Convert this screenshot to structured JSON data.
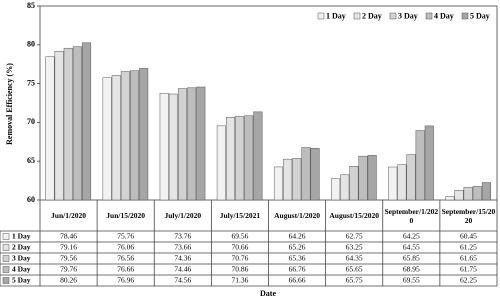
{
  "chart_data": {
    "type": "bar",
    "y_label": "Removal Efficiency (%)",
    "x_label": "Date",
    "categories": [
      "Jun/1/2020",
      "Jun/15/2020",
      "July/1/2020",
      "July/15/2021",
      "August/1/2020",
      "August/15/2020",
      "September/1/2020",
      "September/15/2020"
    ],
    "series": [
      {
        "name": "1 Day",
        "color": "#f2f2f2",
        "values": [
          78.46,
          75.76,
          73.76,
          69.56,
          64.26,
          62.75,
          64.25,
          60.45
        ]
      },
      {
        "name": "2 Day",
        "color": "#e4e4e4",
        "values": [
          79.16,
          76.06,
          73.66,
          70.66,
          65.26,
          63.25,
          64.55,
          61.25
        ]
      },
      {
        "name": "3 Day",
        "color": "#d2d2d2",
        "values": [
          79.56,
          76.56,
          74.36,
          70.76,
          65.36,
          64.35,
          65.85,
          61.65
        ]
      },
      {
        "name": "4 Day",
        "color": "#bdbdbd",
        "values": [
          79.76,
          76.66,
          74.46,
          70.86,
          66.76,
          65.65,
          68.95,
          61.75
        ]
      },
      {
        "name": "5 Day",
        "color": "#a6a6a6",
        "values": [
          80.26,
          76.96,
          74.56,
          71.36,
          66.66,
          65.75,
          69.55,
          62.25
        ]
      }
    ],
    "ylim": [
      60,
      85
    ],
    "yticks": [
      60,
      65,
      70,
      75,
      80,
      85
    ],
    "grid": false,
    "legend": "top-right"
  }
}
